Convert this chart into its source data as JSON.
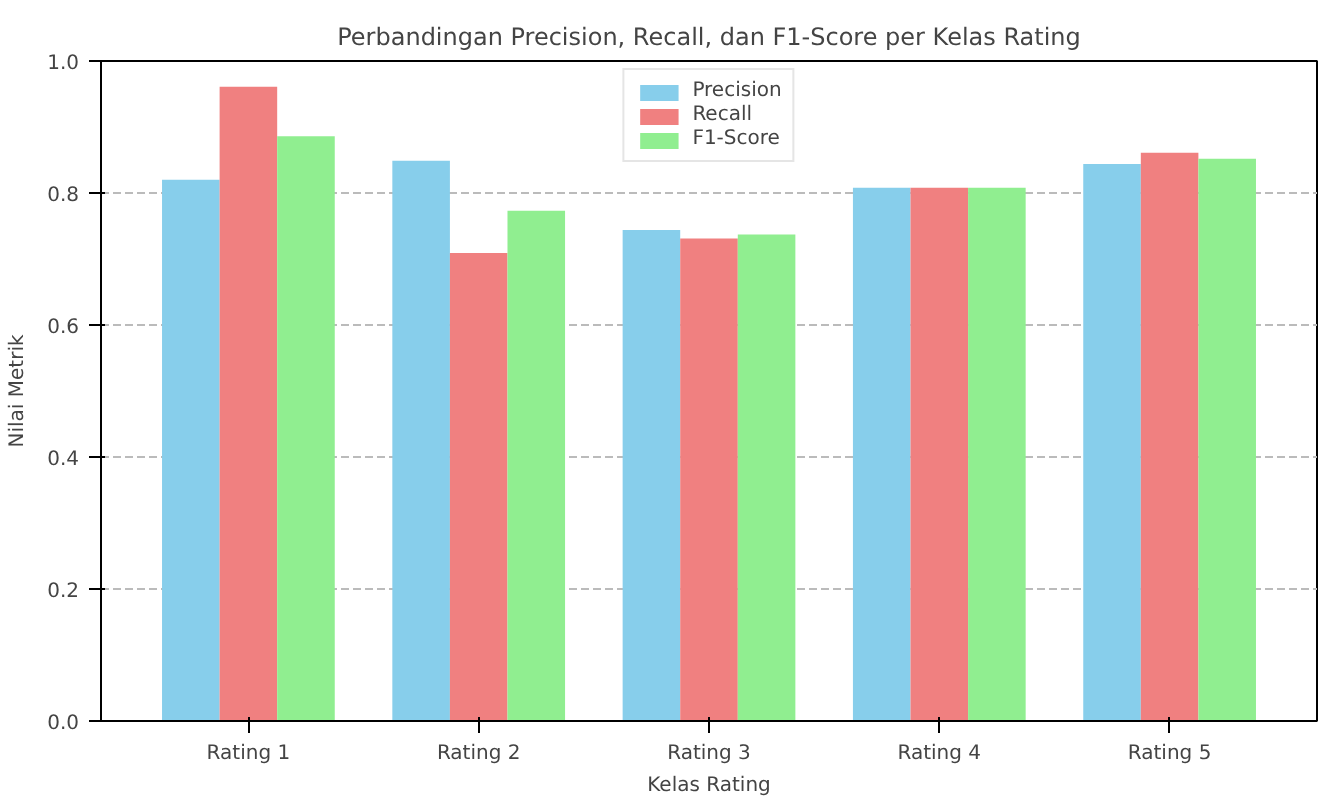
{
  "chart_data": {
    "type": "bar",
    "title": "Perbandingan Precision, Recall, dan F1-Score per Kelas Rating",
    "xlabel": "Kelas Rating",
    "ylabel": "Nilai Metrik",
    "categories": [
      "Rating 1",
      "Rating 2",
      "Rating 3",
      "Rating 4",
      "Rating 5"
    ],
    "series": [
      {
        "name": "Precision",
        "color": "#87ceeb",
        "values": [
          0.82,
          0.849,
          0.744,
          0.808,
          0.844
        ]
      },
      {
        "name": "Recall",
        "color": "#f08080",
        "values": [
          0.961,
          0.709,
          0.731,
          0.808,
          0.861
        ]
      },
      {
        "name": "F1-Score",
        "color": "#90ee90",
        "values": [
          0.886,
          0.773,
          0.737,
          0.808,
          0.852
        ]
      }
    ],
    "ylim": [
      0,
      1.0
    ],
    "yticks": [
      {
        "value": 0,
        "label": "0.0"
      },
      {
        "value": 0.2,
        "label": "0.2"
      },
      {
        "value": 0.4,
        "label": "0.4"
      },
      {
        "value": 0.6,
        "label": "0.6"
      },
      {
        "value": 0.8,
        "label": "0.8"
      },
      {
        "value": 1.0,
        "label": "1.0"
      }
    ],
    "grid": "y",
    "legend": "top"
  }
}
